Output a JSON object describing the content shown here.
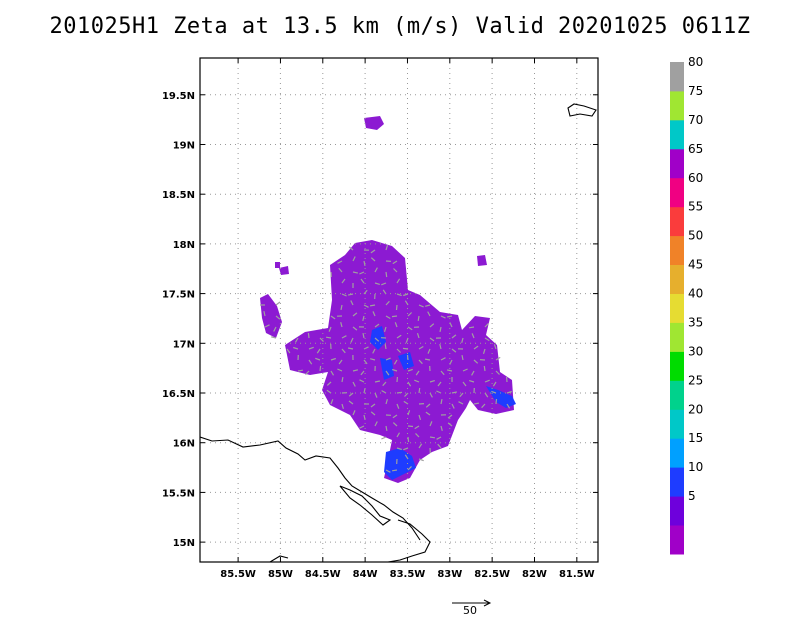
{
  "title": "201025H1 Zeta at 13.5 km (m/s) Valid 20201025 0611Z",
  "map": {
    "lon_range": [
      -85.95,
      -81.25
    ],
    "lat_range": [
      14.8,
      19.87
    ],
    "lat_ticks": [
      {
        "value": 19.5,
        "label": "19.5N"
      },
      {
        "value": 19.0,
        "label": "19N"
      },
      {
        "value": 18.5,
        "label": "18.5N"
      },
      {
        "value": 18.0,
        "label": "18N"
      },
      {
        "value": 17.5,
        "label": "17.5N"
      },
      {
        "value": 17.0,
        "label": "17N"
      },
      {
        "value": 16.5,
        "label": "16.5N"
      },
      {
        "value": 16.0,
        "label": "16N"
      },
      {
        "value": 15.5,
        "label": "15.5N"
      },
      {
        "value": 15.0,
        "label": "15N"
      }
    ],
    "lon_ticks": [
      {
        "value": -85.5,
        "label": "85.5W"
      },
      {
        "value": -85.0,
        "label": "85W"
      },
      {
        "value": -84.5,
        "label": "84.5W"
      },
      {
        "value": -84.0,
        "label": "84W"
      },
      {
        "value": -83.5,
        "label": "83.5W"
      },
      {
        "value": -83.0,
        "label": "83W"
      },
      {
        "value": -82.5,
        "label": "82.5W"
      },
      {
        "value": -82.0,
        "label": "82W"
      },
      {
        "value": -81.5,
        "label": "81.5W"
      }
    ],
    "grid": true,
    "field_color": "#8c1ad2",
    "field_highlight_color": "#9b00e6",
    "blue_color": "#1e3cff",
    "vector_color": "#a0a0a0",
    "coast_color": "#000000"
  },
  "colorbar": {
    "levels": [
      {
        "color": "#a000c8",
        "label": ""
      },
      {
        "color": "#6e00dc",
        "label": "5"
      },
      {
        "color": "#1e3cff",
        "label": "10"
      },
      {
        "color": "#00a0ff",
        "label": "15"
      },
      {
        "color": "#00c8c8",
        "label": "20"
      },
      {
        "color": "#00d28c",
        "label": "25"
      },
      {
        "color": "#00dc00",
        "label": "30"
      },
      {
        "color": "#a0e632",
        "label": "35"
      },
      {
        "color": "#e6dc32",
        "label": "40"
      },
      {
        "color": "#e6af2d",
        "label": "45"
      },
      {
        "color": "#f08228",
        "label": "50"
      },
      {
        "color": "#fa3c3c",
        "label": "55"
      },
      {
        "color": "#f00082",
        "label": "60"
      },
      {
        "color": "#a000c8",
        "label": "65"
      },
      {
        "color": "#00c8c8",
        "label": "70"
      },
      {
        "color": "#a0e632",
        "label": "75"
      },
      {
        "color": "#a0a0a0",
        "label": "80"
      }
    ]
  },
  "vector_key": {
    "label": "50"
  }
}
